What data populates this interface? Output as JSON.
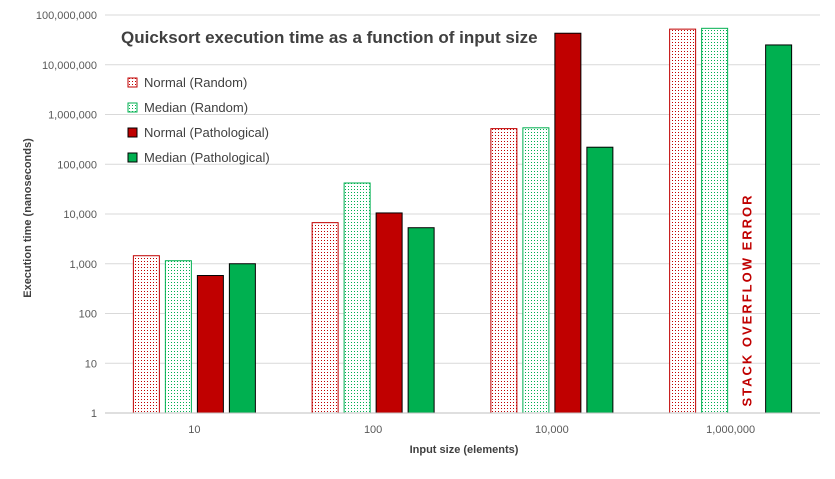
{
  "chart_data": {
    "type": "bar",
    "title": "Quicksort execution time as a function of input size",
    "xlabel": "Input size (elements)",
    "ylabel": "Execution time (nanoseconds)",
    "yscale": "log",
    "ylim": [
      1,
      100000000
    ],
    "grid": true,
    "legend_position": "top-left",
    "categories": [
      "10",
      "100",
      "10,000",
      "1,000,000"
    ],
    "y_ticks": [
      {
        "value": 1,
        "label": "1"
      },
      {
        "value": 10,
        "label": "10"
      },
      {
        "value": 100,
        "label": "100"
      },
      {
        "value": 1000,
        "label": "1,000"
      },
      {
        "value": 10000,
        "label": "10,000"
      },
      {
        "value": 100000,
        "label": "100,000"
      },
      {
        "value": 1000000,
        "label": "1,000,000"
      },
      {
        "value": 10000000,
        "label": "10,000,000"
      },
      {
        "value": 100000000,
        "label": "100,000,000"
      }
    ],
    "series": [
      {
        "name": "Normal (Random)",
        "fill": "dots-red",
        "values": [
          1450,
          6700,
          520000,
          52000000
        ]
      },
      {
        "name": "Median (Random)",
        "fill": "dots-green",
        "values": [
          1150,
          42000,
          540000,
          54000000
        ]
      },
      {
        "name": "Normal (Pathological)",
        "fill": "#c00000",
        "values": [
          580,
          10500,
          43000000,
          null
        ]
      },
      {
        "name": "Median (Pathological)",
        "fill": "#00b050",
        "values": [
          1000,
          5300,
          220000,
          25000000
        ]
      }
    ],
    "annotations": [
      {
        "text": "STACK OVERFLOW ERROR",
        "category_index": 3,
        "series_index": 2,
        "color": "#c00000",
        "orientation": "vertical"
      }
    ]
  }
}
